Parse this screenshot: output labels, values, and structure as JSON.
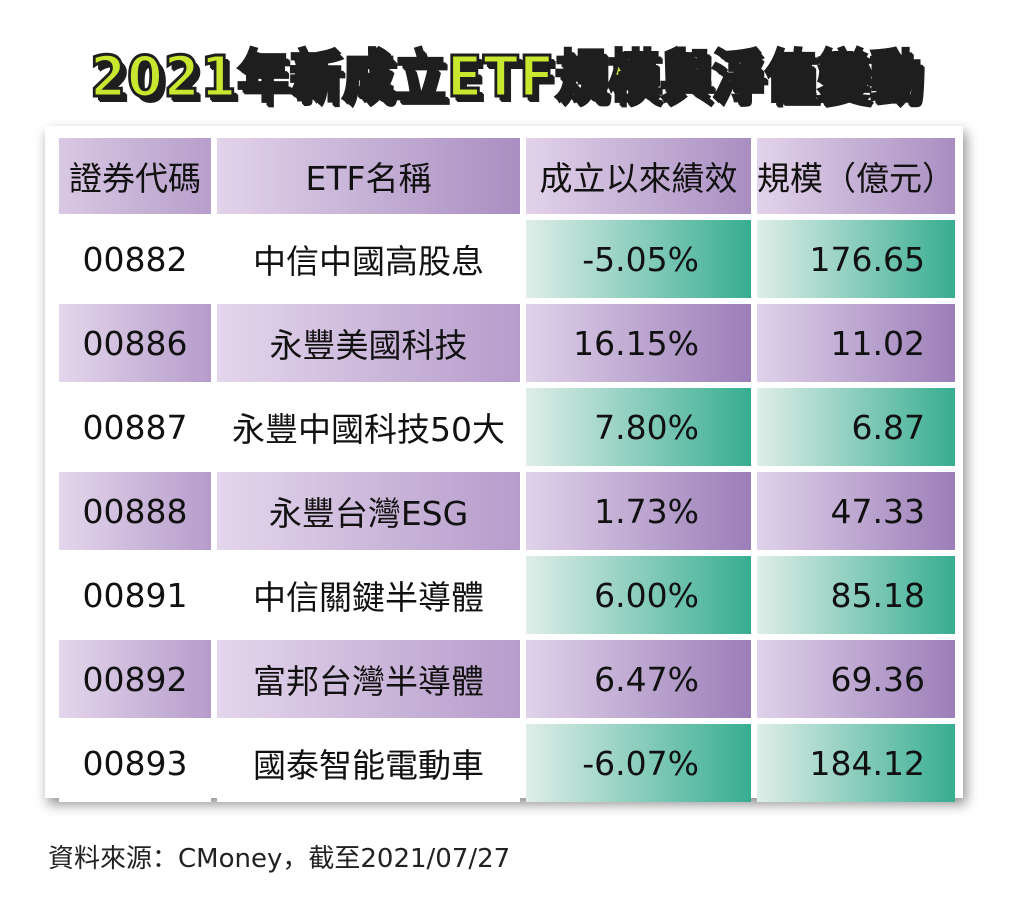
{
  "chart_data": {
    "type": "table",
    "title": "2021年新成立ETF規模與淨值變動",
    "columns": [
      "證券代碼",
      "ETF名稱",
      "成立以來績效",
      "規模（億元）"
    ],
    "rows": [
      {
        "code": "00882",
        "name": "中信中國高股息",
        "performance": "-5.05%",
        "size": "176.65"
      },
      {
        "code": "00886",
        "name": "永豐美國科技",
        "performance": "16.15%",
        "size": "11.02"
      },
      {
        "code": "00887",
        "name": "永豐中國科技50大",
        "performance": "7.80%",
        "size": "6.87"
      },
      {
        "code": "00888",
        "name": "永豐台灣ESG",
        "performance": "1.73%",
        "size": "47.33"
      },
      {
        "code": "00891",
        "name": "中信關鍵半導體",
        "performance": "6.00%",
        "size": "85.18"
      },
      {
        "code": "00892",
        "name": "富邦台灣半導體",
        "performance": "6.47%",
        "size": "69.36"
      },
      {
        "code": "00893",
        "name": "國泰智能電動車",
        "performance": "-6.07%",
        "size": "184.12"
      }
    ],
    "source": "資料來源：CMoney，截至2021/07/27"
  },
  "colors": {
    "title_fill": "#c8e830",
    "title_outline": "#1e1e1e",
    "purple_accent": "#9c7eb8",
    "green_accent": "#37ad91"
  }
}
